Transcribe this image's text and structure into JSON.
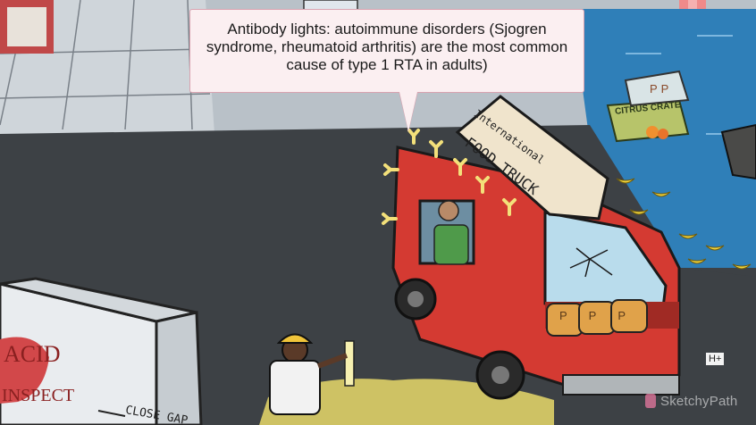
{
  "caption": {
    "text": "Antibody lights: autoimmune disorders (Sjogren syndrome, rheumatoid arthritis) are the most common cause of type 1 RTA in adults)"
  },
  "signs": {
    "truck_line1": "International",
    "truck_line2": "FOOD TRUCK",
    "crate": "CITRUS CRATE",
    "plate": "H+",
    "trailer_word1": "ACID",
    "trailer_word2": "INSPECT",
    "trailer_bottom": "CLOSE GAP",
    "cans": [
      "P",
      "P",
      "P"
    ],
    "crate_top": [
      "P",
      "P"
    ]
  },
  "watermark": {
    "text": "SketchyPath"
  },
  "colors": {
    "accent_pink": "#d9a3b0",
    "truck_red": "#d43a32",
    "road": "#3d4145",
    "water": "#2f7fb8",
    "acid_yellow": "#e8d96a"
  }
}
